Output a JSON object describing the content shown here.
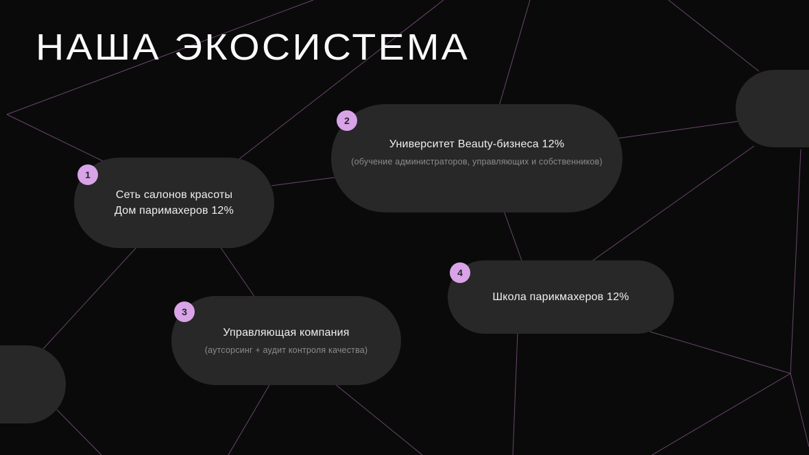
{
  "slide": {
    "title": "НАША ЭКОСИСТЕМА"
  },
  "cards": [
    {
      "number": "1",
      "line1": "Сеть салонов красоты",
      "line2": "Дом паримахеров 12%",
      "subtitle": ""
    },
    {
      "number": "2",
      "line1": "Университет Beauty-бизнеса 12%",
      "line2": "",
      "subtitle": "(обучение администраторов, управляющих и собственников)"
    },
    {
      "number": "3",
      "line1": "Управляющая компания",
      "line2": "",
      "subtitle": "(аутсорсинг + аудит контроля качества)"
    },
    {
      "number": "4",
      "line1": "Школа парикмахеров 12%",
      "line2": "",
      "subtitle": ""
    }
  ],
  "colors": {
    "background": "#0a0a0a",
    "card": "#282828",
    "badge": "#d9a3e8",
    "badge_text": "#26262b",
    "line": "#7b5280",
    "title_text": "#fafafa",
    "body_text": "#f0f0f0",
    "muted_text": "#8c8c8c"
  },
  "background": {
    "lines": [
      [
        457,
        0,
        10,
        167
      ],
      [
        10,
        167,
        150,
        235
      ],
      [
        345,
        235,
        647,
        0
      ],
      [
        773,
        0,
        727,
        158
      ],
      [
        900,
        202,
        1077,
        177
      ],
      [
        975,
        0,
        1107,
        104
      ],
      [
        1100,
        213,
        862,
        382
      ],
      [
        1168,
        218,
        1153,
        545
      ],
      [
        948,
        484,
        1153,
        545
      ],
      [
        1153,
        545,
        951,
        664
      ],
      [
        1153,
        545,
        1180,
        652
      ],
      [
        735,
        308,
        762,
        383
      ],
      [
        396,
        271,
        488,
        259
      ],
      [
        200,
        360,
        63,
        509
      ],
      [
        321,
        360,
        372,
        434
      ],
      [
        394,
        560,
        333,
        664
      ],
      [
        488,
        560,
        616,
        664
      ],
      [
        755,
        485,
        748,
        664
      ],
      [
        83,
        598,
        148,
        664
      ]
    ]
  }
}
